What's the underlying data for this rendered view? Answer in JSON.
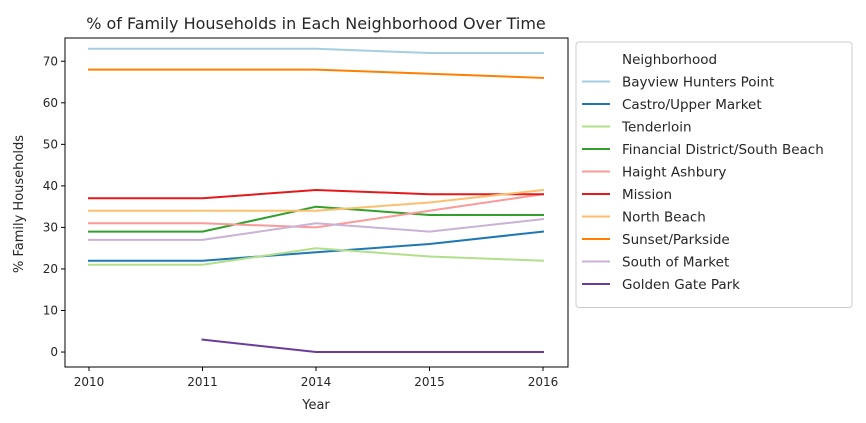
{
  "chart_data": {
    "type": "line",
    "title": "% of Family Households in Each Neighborhood Over Time",
    "xlabel": "Year",
    "ylabel": "% Family Households",
    "categories": [
      "2010",
      "2011",
      "2014",
      "2015",
      "2016"
    ],
    "yticks": [
      0,
      10,
      20,
      30,
      40,
      50,
      60,
      70
    ],
    "ylim": [
      -3.6,
      75.6
    ],
    "grid": false,
    "legend": {
      "title": "Neighborhood",
      "placement": "outside-right"
    },
    "series": [
      {
        "name": "Bayview Hunters Point",
        "color": "#a6cee3",
        "values": [
          73,
          73,
          73,
          72,
          72
        ]
      },
      {
        "name": "Castro/Upper Market",
        "color": "#1f78b4",
        "values": [
          22,
          22,
          24,
          26,
          29
        ]
      },
      {
        "name": "Tenderloin",
        "color": "#b2df8a",
        "values": [
          21,
          21,
          25,
          23,
          22
        ]
      },
      {
        "name": "Financial District/South Beach",
        "color": "#33a02c",
        "values": [
          29,
          29,
          35,
          33,
          33
        ]
      },
      {
        "name": "Haight Ashbury",
        "color": "#fb9a99",
        "values": [
          31,
          31,
          30,
          34,
          38
        ]
      },
      {
        "name": "Mission",
        "color": "#e31a1c",
        "values": [
          37,
          37,
          39,
          38,
          38
        ]
      },
      {
        "name": "North Beach",
        "color": "#fdbf6f",
        "values": [
          34,
          34,
          34,
          36,
          39
        ]
      },
      {
        "name": "Sunset/Parkside",
        "color": "#ff7f00",
        "values": [
          68,
          68,
          68,
          67,
          66
        ]
      },
      {
        "name": "South of Market",
        "color": "#cab2d6",
        "values": [
          27,
          27,
          31,
          29,
          32
        ]
      },
      {
        "name": "Golden Gate Park",
        "color": "#6a3d9a",
        "values": [
          null,
          3,
          0,
          0,
          0
        ]
      }
    ]
  }
}
